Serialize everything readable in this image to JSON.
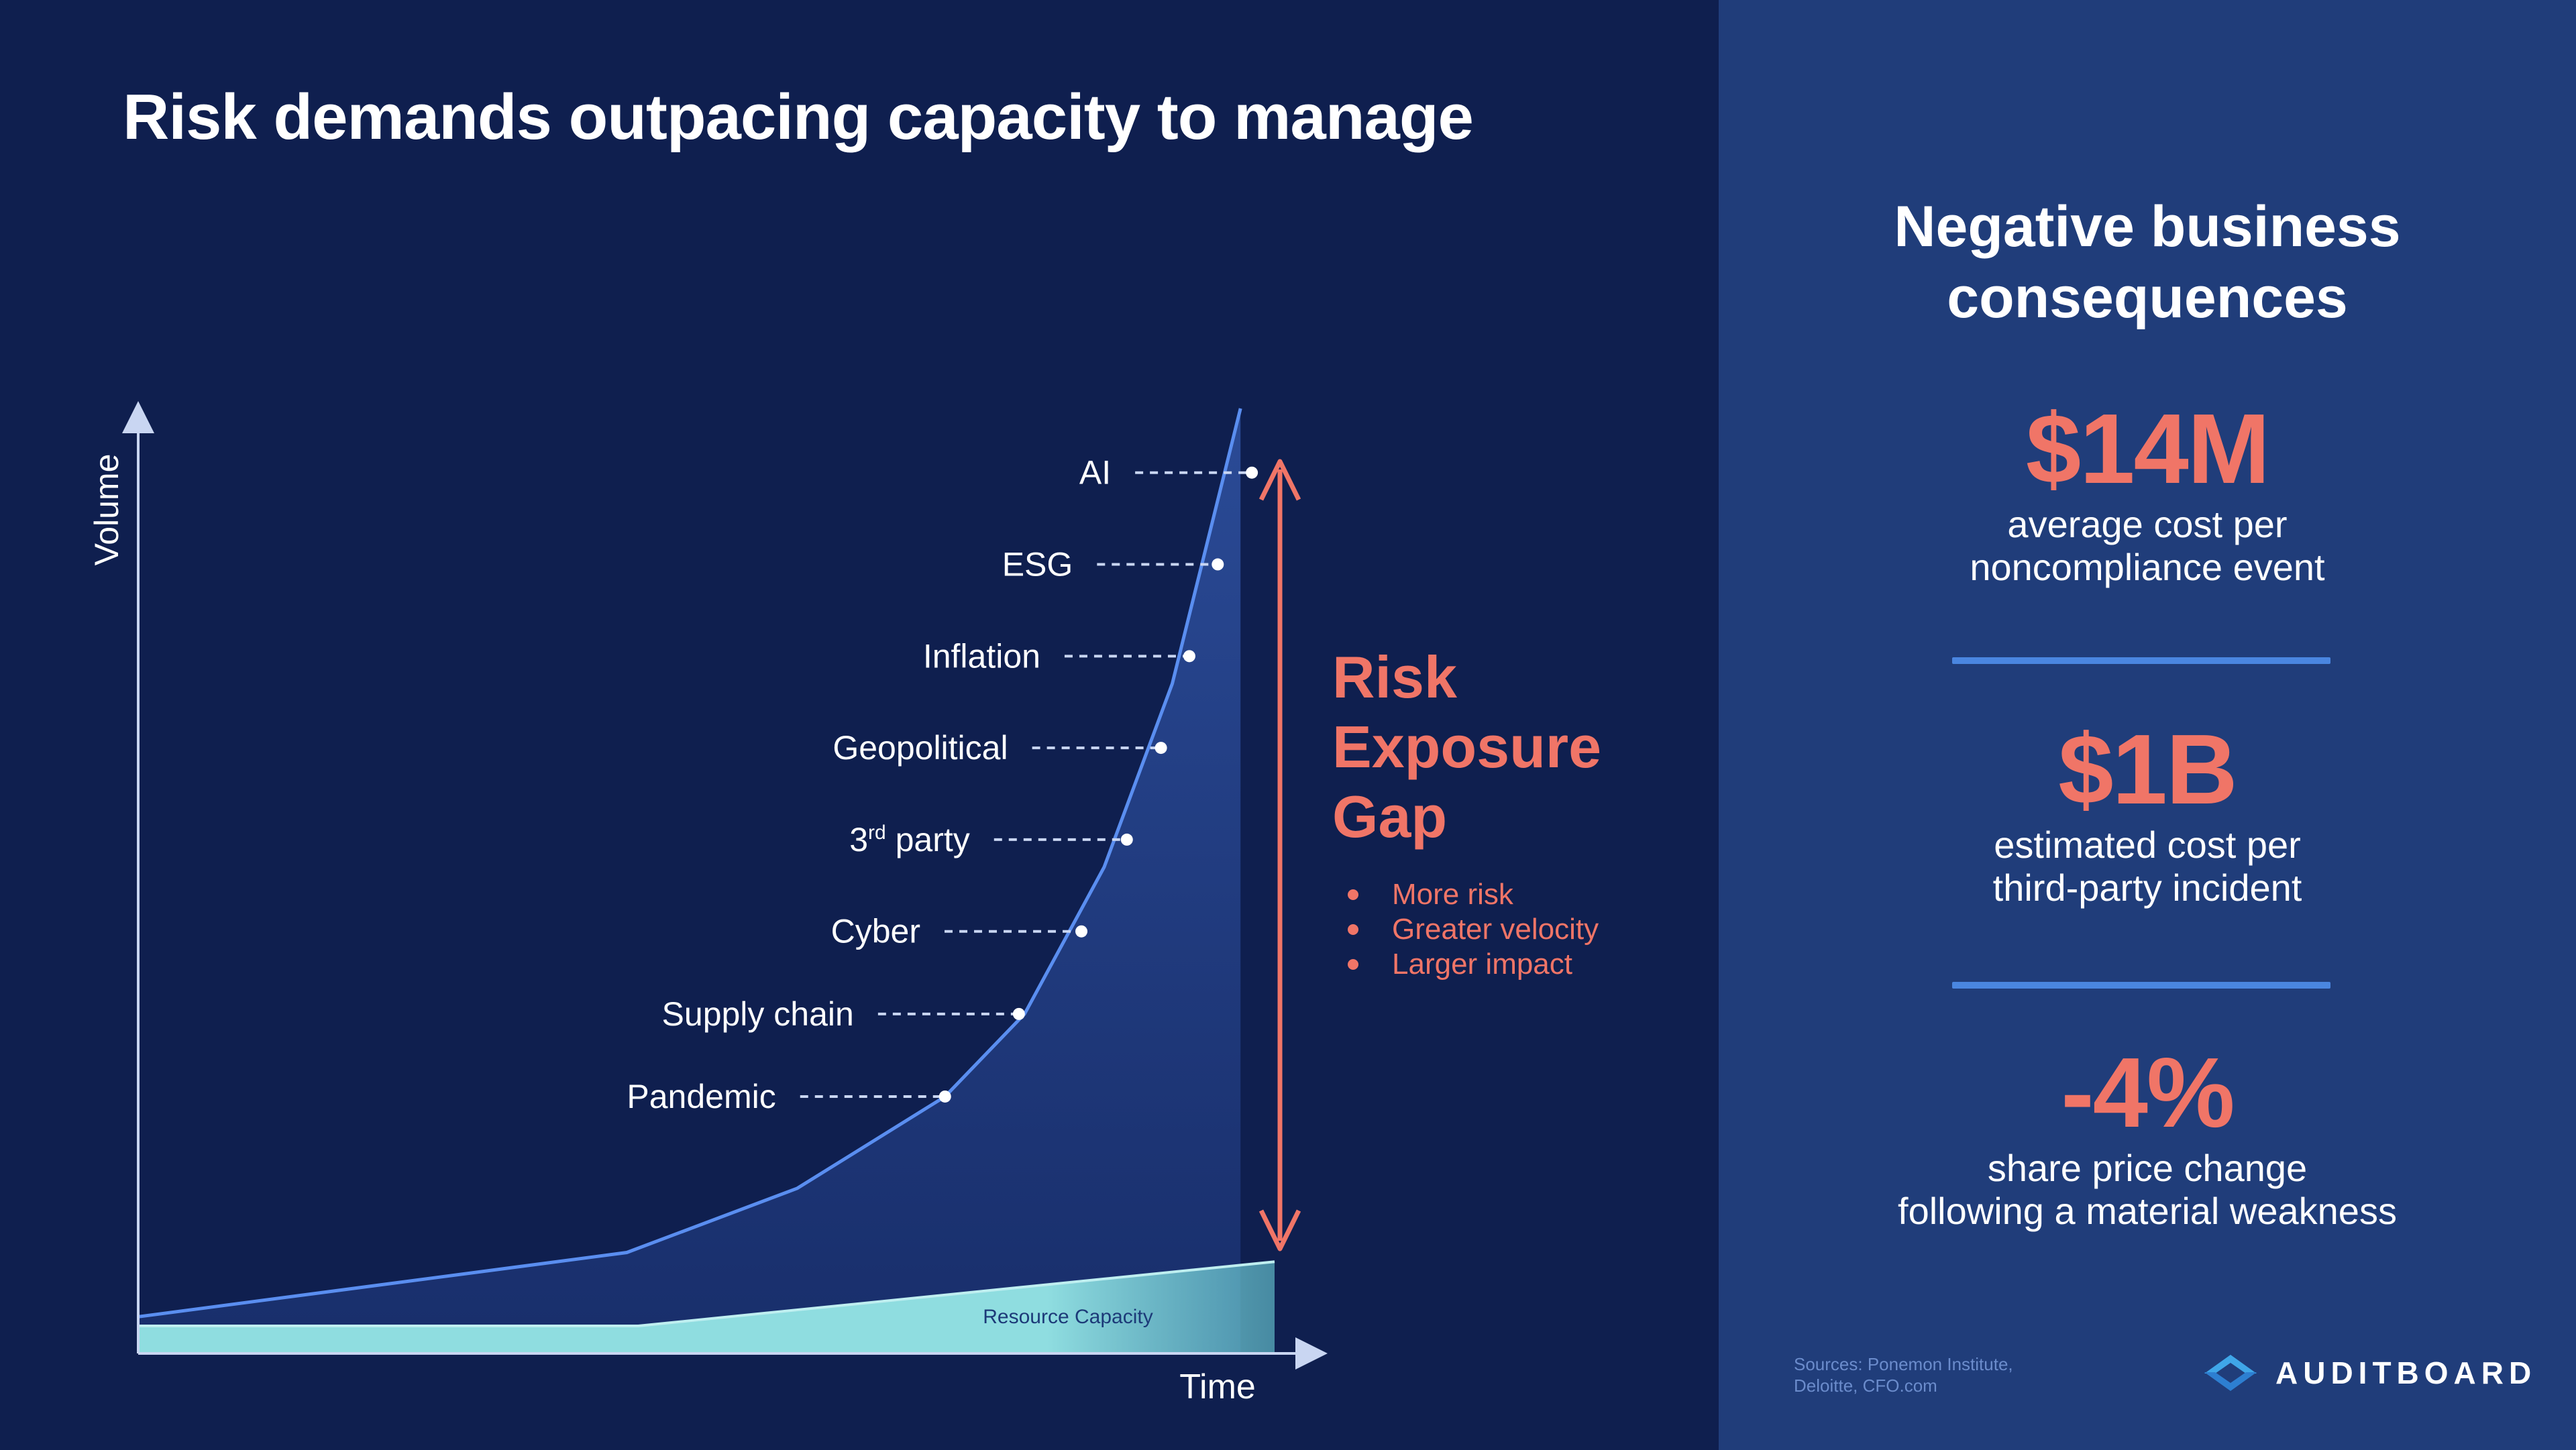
{
  "title": "Risk demands outpacing capacity to manage",
  "chart_data": {
    "type": "area",
    "xlabel": "Time",
    "ylabel": "Volume",
    "xlim": [
      0,
      100
    ],
    "ylim": [
      0,
      100
    ],
    "series": [
      {
        "name": "Risk demand",
        "x": [
          0,
          43,
          58,
          71,
          78,
          85,
          91,
          97
        ],
        "y": [
          4,
          11,
          18,
          28,
          37,
          53,
          73,
          103
        ]
      },
      {
        "name": "Resource Capacity",
        "x": [
          0,
          44,
          100
        ],
        "y": [
          3,
          3,
          10
        ]
      }
    ],
    "annotations": [
      {
        "label": "Pandemic",
        "x": 71,
        "y": 28
      },
      {
        "label": "Supply chain",
        "x": 77.5,
        "y": 37
      },
      {
        "label": "Cyber",
        "x": 83,
        "y": 46
      },
      {
        "label": "3rd party",
        "x": 87,
        "y": 56
      },
      {
        "label": "Geopolitical",
        "x": 90,
        "y": 66
      },
      {
        "label": "Inflation",
        "x": 92.5,
        "y": 76
      },
      {
        "label": "ESG",
        "x": 95,
        "y": 86
      },
      {
        "label": "AI",
        "x": 98,
        "y": 96
      }
    ],
    "capacity_label": "Resource Capacity",
    "gap_label": "Risk Exposure Gap",
    "gap_bullets": [
      "More risk",
      "Greater velocity",
      "Larger impact"
    ]
  },
  "panel": {
    "heading": "Negative business consequences",
    "stats": [
      {
        "value": "$14M",
        "desc": "average cost per\nnoncompliance event"
      },
      {
        "value": "$1B",
        "desc": "estimated cost per\nthird-party incident"
      },
      {
        "value": "-4%",
        "desc": "share price change\nfollowing a material weakness"
      }
    ],
    "sources": "Sources: Ponemon Institute,\nDeloitte, CFO.com",
    "brand": "AUDITBOARD"
  },
  "colors": {
    "background": "#0f1f4f",
    "panel": "#203d7a",
    "accent": "#f07567",
    "line": "#5a8ef0",
    "capacity": "#8fdde0"
  }
}
